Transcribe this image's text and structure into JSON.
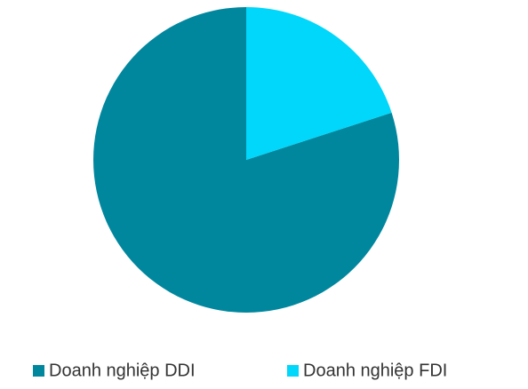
{
  "chart_data": {
    "type": "pie",
    "categories": [
      "Doanh nghiệp DDI",
      "Doanh nghiệp FDI"
    ],
    "values": [
      80,
      20
    ],
    "colors": [
      "#00879e",
      "#00d7fa"
    ],
    "legend": "bottom"
  }
}
